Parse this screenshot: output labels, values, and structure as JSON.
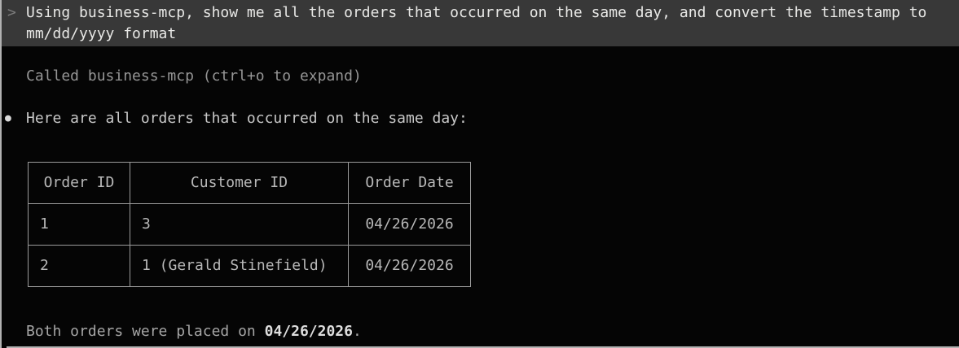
{
  "colors": {
    "terminal_bg": "#050505",
    "header_bg": "#383838",
    "header_text": "#e8e8e6",
    "chevron": "#7c7c7c",
    "dim_text": "#969696",
    "dim_text2": "#a6a6a6",
    "body_text": "#c9c9c9",
    "bullet": "#d8d8d8",
    "table_text": "#b8b8b8",
    "table_border": "#9b9b9b",
    "bold_text": "#dedede",
    "edge_line": "#b2b2b2"
  },
  "prompt": {
    "chevron": ">",
    "text": "Using business-mcp, show me all the orders that occurred on the same day, and convert the timestamp to mm/dd/yyyy format"
  },
  "tool_call": {
    "status": "Called business-mcp (ctrl+o to expand)"
  },
  "response": {
    "bullet": "●",
    "intro": "Here are all orders that occurred on the same day:",
    "table": {
      "headers": [
        "Order ID",
        "Customer ID",
        "Order Date"
      ],
      "rows": [
        [
          "1",
          "3",
          "04/26/2026"
        ],
        [
          "2",
          "1 (Gerald Stinefield)",
          "04/26/2026"
        ]
      ]
    },
    "summary_prefix": "Both orders were placed on ",
    "summary_date": "04/26/2026",
    "summary_suffix": "."
  }
}
